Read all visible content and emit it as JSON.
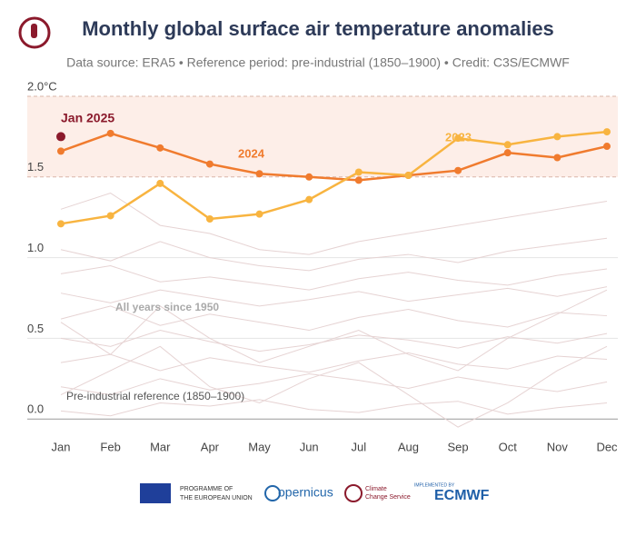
{
  "chart_data": {
    "type": "line",
    "title": "Monthly global surface air temperature anomalies",
    "subtitle": "Data source: ERA5 • Reference period: pre-industrial (1850–1900) • Credit: C3S/ECMWF",
    "categories": [
      "Jan",
      "Feb",
      "Mar",
      "Apr",
      "May",
      "Jun",
      "Jul",
      "Aug",
      "Sep",
      "Oct",
      "Nov",
      "Dec"
    ],
    "ylim": [
      -0.1,
      2.0
    ],
    "yticks": [
      {
        "value": 0,
        "label": "0.0"
      },
      0.5,
      {
        "value": 1,
        "label": "1.0"
      },
      1.5,
      {
        "value": 2,
        "label": "2.0°C"
      }
    ],
    "shaded_range": [
      1.5,
      2.0
    ],
    "grid": true,
    "series": [
      {
        "name": "2024",
        "color": "#f07b2e",
        "values": [
          1.66,
          1.77,
          1.68,
          1.58,
          1.52,
          1.5,
          1.48,
          1.51,
          1.54,
          1.65,
          1.62,
          1.69
        ]
      },
      {
        "name": "2023",
        "color": "#f8b440",
        "values": [
          1.21,
          1.26,
          1.46,
          1.24,
          1.27,
          1.36,
          1.53,
          1.51,
          1.74,
          1.7,
          1.75,
          1.78
        ]
      },
      {
        "name": "Jan 2025",
        "color": "#8b1a2c",
        "marker": true,
        "values": [
          1.75,
          null,
          null,
          null,
          null,
          null,
          null,
          null,
          null,
          null,
          null,
          null
        ]
      }
    ],
    "background_series": {
      "color": "#e6d3d3",
      "lines": [
        [
          0.05,
          0.02,
          0.1,
          0.08,
          0.12,
          0.06,
          0.04,
          0.09,
          0.11,
          0.03,
          0.07,
          0.1
        ],
        [
          0.2,
          0.15,
          0.25,
          0.18,
          0.22,
          0.28,
          0.24,
          0.19,
          0.26,
          0.21,
          0.17,
          0.23
        ],
        [
          0.35,
          0.4,
          0.3,
          0.38,
          0.33,
          0.29,
          0.36,
          0.41,
          0.34,
          0.31,
          0.39,
          0.37
        ],
        [
          0.5,
          0.45,
          0.55,
          0.48,
          0.42,
          0.46,
          0.52,
          0.49,
          0.44,
          0.51,
          0.47,
          0.53
        ],
        [
          0.62,
          0.7,
          0.58,
          0.65,
          0.6,
          0.55,
          0.63,
          0.68,
          0.61,
          0.57,
          0.66,
          0.64
        ],
        [
          0.78,
          0.72,
          0.8,
          0.75,
          0.7,
          0.74,
          0.79,
          0.73,
          0.77,
          0.81,
          0.76,
          0.82
        ],
        [
          0.9,
          0.95,
          0.85,
          0.88,
          0.84,
          0.8,
          0.87,
          0.91,
          0.86,
          0.83,
          0.89,
          0.93
        ],
        [
          1.05,
          0.98,
          1.1,
          1.0,
          0.95,
          0.92,
          0.99,
          1.02,
          0.97,
          1.04,
          1.08,
          1.12
        ],
        [
          1.3,
          1.4,
          1.2,
          1.15,
          1.05,
          1.02,
          1.1,
          1.15,
          1.2,
          1.25,
          1.3,
          1.35
        ],
        [
          0.15,
          0.3,
          0.45,
          0.2,
          0.1,
          0.25,
          0.35,
          0.15,
          -0.05,
          0.1,
          0.3,
          0.45
        ],
        [
          0.6,
          0.4,
          0.7,
          0.5,
          0.35,
          0.45,
          0.55,
          0.4,
          0.3,
          0.5,
          0.65,
          0.8
        ]
      ]
    },
    "annotations": [
      "All years since 1950",
      "Pre-industrial reference (1850–1900)"
    ],
    "footer": [
      "PROGRAMME OF",
      "THE EUROPEAN UNION",
      "opernicus",
      "Climate",
      "Change Service",
      "IMPLEMENTED BY",
      "ECMWF"
    ]
  }
}
